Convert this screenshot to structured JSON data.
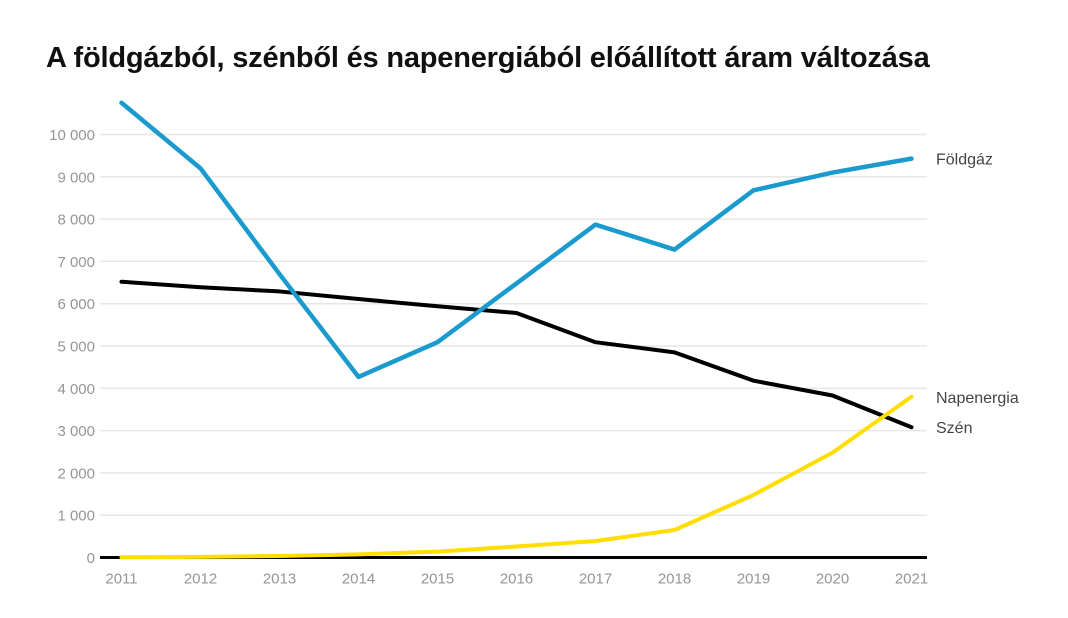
{
  "title": "A földgázból, szénből és napenergiából előállított áram változása",
  "axis": {
    "grid_color": "#e7e7e7",
    "zero_line_color": "#000000",
    "tick_label_color": "#969696",
    "end_label_color": "#444444"
  },
  "chart_data": {
    "type": "line",
    "title": "A földgázból, szénből és napenergiából előállított áram változása",
    "xlabel": "",
    "ylabel": "",
    "grid": "horizontal",
    "legend_position": "right-end-labels",
    "x": [
      2011,
      2012,
      2013,
      2014,
      2015,
      2016,
      2017,
      2018,
      2019,
      2020,
      2021
    ],
    "ylim": [
      0,
      10800
    ],
    "yticks": [
      0,
      1000,
      2000,
      3000,
      4000,
      5000,
      6000,
      7000,
      8000,
      9000,
      10000
    ],
    "ytick_labels": [
      "0",
      "1 000",
      "2 000",
      "3 000",
      "4 000",
      "5 000",
      "6 000",
      "7 000",
      "8 000",
      "9 000",
      "10 000"
    ],
    "series": [
      {
        "name": "Földgáz",
        "color": "#1a9acd",
        "values": [
          10750,
          9200,
          6700,
          4270,
          5090,
          6480,
          7870,
          7280,
          8680,
          9100,
          9430
        ]
      },
      {
        "name": "Szén",
        "color": "#000000",
        "values": [
          6520,
          6390,
          6290,
          6110,
          5940,
          5780,
          5090,
          4850,
          4180,
          3830,
          3080
        ]
      },
      {
        "name": "Napenergia",
        "color": "#ffde00",
        "values": [
          5,
          15,
          35,
          75,
          140,
          260,
          390,
          650,
          1480,
          2480,
          3800
        ]
      }
    ]
  }
}
